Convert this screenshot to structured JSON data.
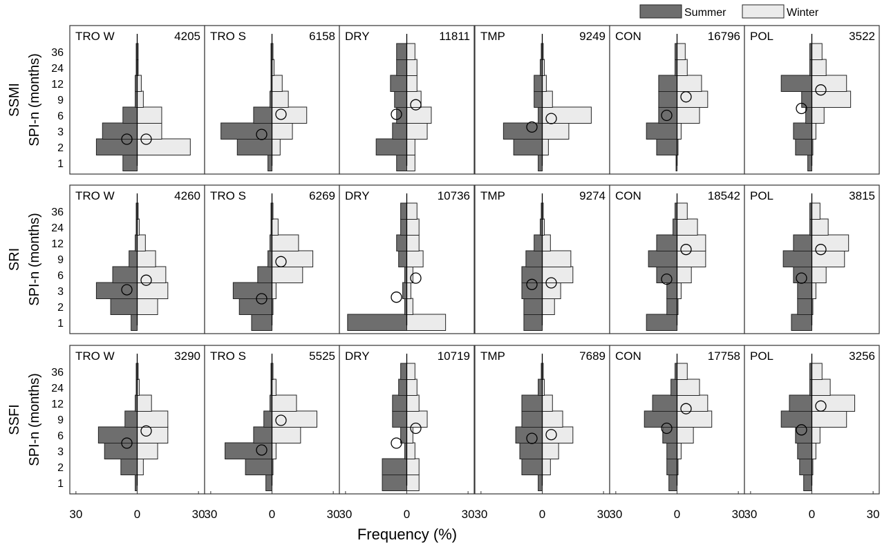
{
  "colors": {
    "summer": "#6e6e6e",
    "winter": "#ebebeb",
    "edge": "#222222",
    "axis": "#333333"
  },
  "chart_data": {
    "type": "bar",
    "orientation": "horizontal-population-pyramid",
    "xlabel": "Frequency (%)",
    "x_tick_labels": [
      "30",
      "0",
      "30"
    ],
    "x_ticks": [
      -30,
      0,
      30
    ],
    "xlim": [
      -33,
      33
    ],
    "y_categories": [
      "1",
      "2",
      "3",
      "6",
      "9",
      "12",
      "24",
      "36"
    ],
    "legend": {
      "position": "top-right",
      "entries": [
        "Summer",
        "Winter"
      ]
    },
    "rows": [
      {
        "index_label": "SSMI",
        "ylabel": "SPI-n (months)"
      },
      {
        "index_label": "SRI",
        "ylabel": "SPI-n (months)"
      },
      {
        "index_label": "SSFI",
        "ylabel": "SPI-n (months)"
      }
    ],
    "region_labels": [
      "TRO W",
      "TRO S",
      "DRY",
      "TMP",
      "CON",
      "POL"
    ],
    "panels": [
      [
        {
          "count": "4205",
          "summer": [
            7,
            20,
            17,
            7,
            1,
            1,
            0.5,
            0.5
          ],
          "winter": [
            0,
            26,
            12,
            12,
            3,
            2,
            0.5,
            0.5
          ],
          "summer_circle": 2.5,
          "winter_circle": 2.5
        },
        {
          "count": "6158",
          "summer": [
            2,
            17,
            25,
            9,
            1,
            0.5,
            0.5,
            0.5
          ],
          "winter": [
            0,
            4,
            10,
            17,
            8,
            5,
            1,
            0.5
          ],
          "summer_circle": 2.8,
          "winter_circle": 6.2
        },
        {
          "count": "11811",
          "summer": [
            5,
            15,
            7,
            5,
            6,
            8,
            5,
            5
          ],
          "winter": [
            4,
            4,
            10,
            12,
            7,
            5,
            5,
            4
          ],
          "summer_circle": 6.2,
          "winter_circle": 8
        },
        {
          "count": "9249",
          "summer": [
            2,
            14,
            19,
            2,
            4,
            4,
            1,
            0.5
          ],
          "winter": [
            0,
            3,
            13,
            24,
            5,
            2,
            1,
            0.5
          ],
          "summer_circle": 3.8,
          "winter_circle": 5.4
        },
        {
          "count": "16796",
          "summer": [
            0.5,
            10,
            15,
            9,
            9,
            9,
            1,
            1
          ],
          "winter": [
            0,
            0.5,
            2,
            11,
            15,
            12,
            5,
            4
          ],
          "summer_circle": 6,
          "winter_circle": 9.5
        },
        {
          "count": "3522",
          "summer": [
            2,
            8,
            9,
            3,
            5,
            15,
            1,
            1
          ],
          "winter": [
            0,
            0.5,
            2,
            6,
            19,
            17,
            7,
            5
          ],
          "summer_circle": 7.3,
          "winter_circle": 10.8
        }
      ],
      [
        {
          "count": "4260",
          "summer": [
            3,
            13,
            20,
            12,
            4,
            1,
            0.5,
            0.5
          ],
          "winter": [
            0,
            10,
            15,
            14,
            9,
            4,
            1,
            0.5
          ],
          "summer_circle": 3.2,
          "winter_circle": 5
        },
        {
          "count": "6269",
          "summer": [
            10,
            16,
            19,
            7,
            2,
            1,
            0.5,
            0.5
          ],
          "winter": [
            0,
            0.5,
            2,
            15,
            20,
            13,
            3,
            0.5
          ],
          "summer_circle": 2.5,
          "winter_circle": 8.5
        },
        {
          "count": "10736",
          "summer": [
            29,
            1,
            2,
            1,
            4,
            5,
            3,
            3
          ],
          "winter": [
            19,
            3,
            2,
            3,
            8,
            6,
            6,
            5
          ],
          "summer_circle": 2.6,
          "winter_circle": 5.4
        },
        {
          "count": "9274",
          "summer": [
            9,
            9,
            10,
            10,
            8,
            4,
            1,
            0.5
          ],
          "winter": [
            0,
            6,
            9,
            15,
            14,
            4,
            1,
            0.5
          ],
          "summer_circle": 4.2,
          "winter_circle": 4.5
        },
        {
          "count": "18542",
          "summer": [
            15,
            5,
            5,
            10,
            14,
            10,
            2,
            1
          ],
          "winter": [
            0,
            0.5,
            2,
            7,
            14,
            14,
            10,
            5
          ],
          "summer_circle": 5.2,
          "winter_circle": 10.8
        },
        {
          "count": "3815",
          "summer": [
            10,
            7,
            7,
            9,
            14,
            9,
            1,
            1
          ],
          "winter": [
            0,
            0.5,
            2,
            7,
            16,
            18,
            8,
            4
          ],
          "summer_circle": 5.4,
          "winter_circle": 10.8
        }
      ],
      [
        {
          "count": "3290",
          "summer": [
            1,
            8,
            16,
            19,
            6,
            1,
            0.5,
            0.5
          ],
          "winter": [
            0,
            3,
            10,
            15,
            15,
            7,
            1,
            0.5
          ],
          "summer_circle": 4.5,
          "winter_circle": 6.8
        },
        {
          "count": "5525",
          "summer": [
            3,
            13,
            23,
            9,
            4,
            1,
            0.5,
            0.5
          ],
          "winter": [
            0,
            0.5,
            2,
            14,
            22,
            12,
            2,
            0.5
          ],
          "summer_circle": 3.2,
          "winter_circle": 8.8
        },
        {
          "count": "10719",
          "summer": [
            12,
            12,
            1,
            3,
            7,
            7,
            4,
            3
          ],
          "winter": [
            6,
            6,
            4,
            3,
            10,
            6,
            5,
            4
          ],
          "summer_circle": 4.5,
          "winter_circle": 7.3
        },
        {
          "count": "7689",
          "summer": [
            2,
            10,
            11,
            13,
            10,
            10,
            2,
            0.5
          ],
          "winter": [
            0,
            4,
            8,
            15,
            10,
            5,
            1,
            0.5
          ],
          "summer_circle": 5.4,
          "winter_circle": 6.1
        },
        {
          "count": "17758",
          "summer": [
            4,
            5,
            5,
            7,
            16,
            12,
            3,
            1
          ],
          "winter": [
            0,
            0.5,
            2,
            8,
            17,
            15,
            11,
            5
          ],
          "summer_circle": 7.3,
          "winter_circle": 11
        },
        {
          "count": "3256",
          "summer": [
            4,
            6,
            7,
            8,
            15,
            11,
            1,
            1
          ],
          "winter": [
            0,
            0.5,
            2,
            4,
            17,
            21,
            9,
            5
          ],
          "summer_circle": 7,
          "winter_circle": 11.5
        }
      ]
    ]
  }
}
